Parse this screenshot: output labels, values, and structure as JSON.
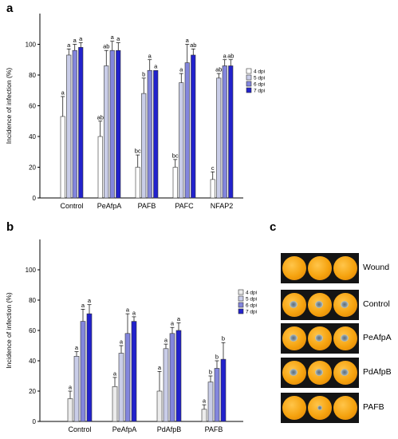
{
  "panels": {
    "a": "a",
    "b": "b",
    "c": "c"
  },
  "chart_data": [
    {
      "panel": "a",
      "type": "bar",
      "ylabel": "Incidence of infection (%)",
      "xlabel": "",
      "ylim": [
        0,
        120
      ],
      "yticks": [
        0,
        20,
        40,
        60,
        80,
        100
      ],
      "categories": [
        "Control",
        "PeAfpA",
        "PAFB",
        "PAFC",
        "NFAP2"
      ],
      "series": [
        {
          "name": "4 dpi",
          "color": "#ffffff",
          "values": [
            53,
            40,
            20,
            20,
            12
          ],
          "errors": [
            13,
            10,
            8,
            5,
            5
          ],
          "letters": [
            "a",
            "ab",
            "bc",
            "bc",
            "c"
          ]
        },
        {
          "name": "5 dpi",
          "color": "#c9cde8",
          "values": [
            93,
            86,
            68,
            75,
            78
          ],
          "errors": [
            4,
            10,
            10,
            6,
            3
          ],
          "letters": [
            "a",
            "ab",
            "b",
            "a",
            "ab"
          ]
        },
        {
          "name": "6 dpi",
          "color": "#8386dd",
          "values": [
            96,
            96,
            83,
            88,
            86
          ],
          "errors": [
            4,
            6,
            7,
            12,
            4
          ],
          "letters": [
            "a",
            "a",
            "a",
            "a",
            "a"
          ]
        },
        {
          "name": "7 dpi",
          "color": "#2222cc",
          "values": [
            98,
            96,
            83,
            93,
            86
          ],
          "errors": [
            3,
            5,
            0,
            4,
            4
          ],
          "letters": [
            "a",
            "a",
            "a",
            "ab",
            "ab"
          ]
        }
      ],
      "legend": "top-right"
    },
    {
      "panel": "b",
      "type": "bar",
      "ylabel": "Incidence of infection (%)",
      "xlabel": "",
      "ylim": [
        0,
        120
      ],
      "yticks": [
        0,
        20,
        40,
        60,
        80,
        100
      ],
      "categories": [
        "Control",
        "PeAfpA",
        "PdAfpB",
        "PAFB"
      ],
      "series": [
        {
          "name": "4 dpi",
          "color": "#ececec",
          "values": [
            15,
            23,
            20,
            8
          ],
          "errors": [
            5,
            6,
            13,
            3
          ],
          "letters": [
            "a",
            "a",
            "a",
            "a"
          ]
        },
        {
          "name": "5 dpi",
          "color": "#c9cde8",
          "values": [
            43,
            45,
            48,
            26
          ],
          "errors": [
            3,
            5,
            3,
            4
          ],
          "letters": [
            "a",
            "a",
            "a",
            "b"
          ]
        },
        {
          "name": "6 dpi",
          "color": "#8386dd",
          "values": [
            66,
            58,
            58,
            35
          ],
          "errors": [
            8,
            13,
            4,
            5
          ],
          "letters": [
            "a",
            "a",
            "a",
            "b"
          ]
        },
        {
          "name": "7 dpi",
          "color": "#2222cc",
          "values": [
            71,
            66,
            60,
            41
          ],
          "errors": [
            6,
            3,
            5,
            11
          ],
          "letters": [
            "a",
            "a",
            "a",
            "b"
          ]
        }
      ],
      "legend": "top-right"
    }
  ],
  "photo_panel": {
    "rows": [
      {
        "label": "Wound",
        "lesions": [
          false,
          false,
          false
        ]
      },
      {
        "label": "Control",
        "lesions": [
          true,
          true,
          true
        ]
      },
      {
        "label": "PeAfpA",
        "lesions": [
          true,
          true,
          true
        ]
      },
      {
        "label": "PdAfpB",
        "lesions": [
          true,
          true,
          true
        ]
      },
      {
        "label": "PAFB",
        "lesions": [
          false,
          true,
          false
        ]
      }
    ]
  }
}
